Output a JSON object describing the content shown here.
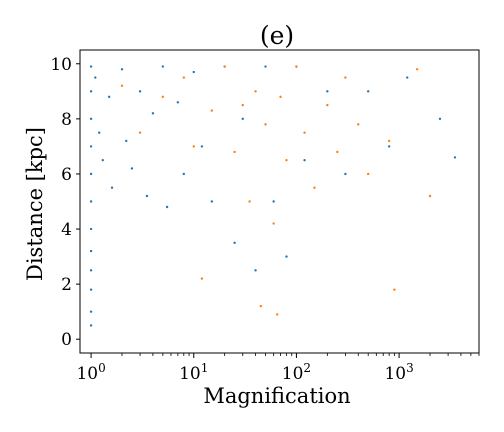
{
  "chart_data": {
    "type": "scatter",
    "title": "(e)",
    "xlabel": "Magnification",
    "ylabel": "Distance [kpc]",
    "xscale": "log",
    "xlim": [
      0.78,
      6000
    ],
    "ylim": [
      -0.5,
      10.5
    ],
    "xticks": [
      {
        "value": 1,
        "base": "10",
        "exp": "0"
      },
      {
        "value": 10,
        "base": "10",
        "exp": "1"
      },
      {
        "value": 100,
        "base": "10",
        "exp": "2"
      },
      {
        "value": 1000,
        "base": "10",
        "exp": "3"
      }
    ],
    "yticks": [
      {
        "value": 0,
        "label": "0"
      },
      {
        "value": 2,
        "label": "2"
      },
      {
        "value": 4,
        "label": "4"
      },
      {
        "value": 6,
        "label": "6"
      },
      {
        "value": 8,
        "label": "8"
      },
      {
        "value": 10,
        "label": "10"
      }
    ],
    "grid": false,
    "legend": "none",
    "series": [
      {
        "color": "#1f77b4",
        "points": [
          [
            1.0,
            9.9
          ],
          [
            1.0,
            9.0
          ],
          [
            1.0,
            8.0
          ],
          [
            1.0,
            7.0
          ],
          [
            1.0,
            6.0
          ],
          [
            1.0,
            5.0
          ],
          [
            1.0,
            4.0
          ],
          [
            1.0,
            3.2
          ],
          [
            1.0,
            2.5
          ],
          [
            1.0,
            1.8
          ],
          [
            1.0,
            1.0
          ],
          [
            1.0,
            0.5
          ],
          [
            1.1,
            9.5
          ],
          [
            1.2,
            7.5
          ],
          [
            1.3,
            6.5
          ],
          [
            1.5,
            8.8
          ],
          [
            1.6,
            5.5
          ],
          [
            2.0,
            9.8
          ],
          [
            2.2,
            7.2
          ],
          [
            2.5,
            6.2
          ],
          [
            3.0,
            9.0
          ],
          [
            3.5,
            5.2
          ],
          [
            4.0,
            8.2
          ],
          [
            5.0,
            9.9
          ],
          [
            5.5,
            4.8
          ],
          [
            7.0,
            8.6
          ],
          [
            8.0,
            6.0
          ],
          [
            10.0,
            9.7
          ],
          [
            12.0,
            7.0
          ],
          [
            15.0,
            5.0
          ],
          [
            20.0,
            9.9
          ],
          [
            25.0,
            3.5
          ],
          [
            30.0,
            8.0
          ],
          [
            40.0,
            2.5
          ],
          [
            50.0,
            9.9
          ],
          [
            60.0,
            5.0
          ],
          [
            80.0,
            3.0
          ],
          [
            100.0,
            9.9
          ],
          [
            120.0,
            6.5
          ],
          [
            200.0,
            9.0
          ],
          [
            300.0,
            6.0
          ],
          [
            500.0,
            9.0
          ],
          [
            800.0,
            7.0
          ],
          [
            1200.0,
            9.5
          ],
          [
            2500.0,
            8.0
          ],
          [
            3500.0,
            6.6
          ]
        ]
      },
      {
        "color": "#ff7f0e",
        "points": [
          [
            2.0,
            9.2
          ],
          [
            3.0,
            7.5
          ],
          [
            5.0,
            8.8
          ],
          [
            8.0,
            9.5
          ],
          [
            10.0,
            7.0
          ],
          [
            15.0,
            8.3
          ],
          [
            20.0,
            9.9
          ],
          [
            25.0,
            6.8
          ],
          [
            30.0,
            8.5
          ],
          [
            35.0,
            5.0
          ],
          [
            40.0,
            9.0
          ],
          [
            50.0,
            7.8
          ],
          [
            60.0,
            4.2
          ],
          [
            70.0,
            8.8
          ],
          [
            80.0,
            6.5
          ],
          [
            100.0,
            9.9
          ],
          [
            120.0,
            7.5
          ],
          [
            150.0,
            5.5
          ],
          [
            200.0,
            8.5
          ],
          [
            250.0,
            6.8
          ],
          [
            300.0,
            9.5
          ],
          [
            400.0,
            7.8
          ],
          [
            500.0,
            6.0
          ],
          [
            800.0,
            7.2
          ],
          [
            900.0,
            1.8
          ],
          [
            1500.0,
            9.8
          ],
          [
            2000.0,
            5.2
          ],
          [
            12.0,
            2.2
          ],
          [
            45.0,
            1.2
          ],
          [
            65.0,
            0.9
          ]
        ]
      }
    ]
  }
}
